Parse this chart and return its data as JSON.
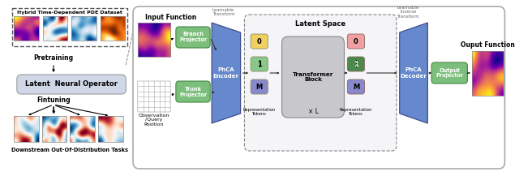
{
  "fig_width": 6.4,
  "fig_height": 2.17,
  "dpi": 100,
  "background": "#ffffff",
  "left_panel": {
    "title": "Hybrid Time-Dependent PDE Dataset",
    "title_fontsize": 5.2,
    "pretraining_label": "Pretraining",
    "finetuning_label": "Fintuning",
    "lno_label": "Latent  Neural Operator",
    "downstream_label": "Downstream Out-Of-Distribution Tasks",
    "lno_box_color": "#d0d8e8",
    "lno_text_color": "#000000",
    "arrow_color": "#000000",
    "dashed_box_color": "#555555"
  },
  "right_panel": {
    "outer_box_color": "#cccccc",
    "input_function_label": "Input Function",
    "output_function_label": "Ouput Function",
    "branch_projector_label": "Branch\nProjector",
    "trunk_projector_label": "Trunk\nProjector",
    "phca_encoder_label": "PhCA\nEncoder",
    "phca_decoder_label": "PhCA\nDecoder",
    "output_projector_label": "Output\nProjector",
    "transformer_block_label": "Transformer\nBlock",
    "latent_space_label": "Latent Space",
    "learnable_transform_label": "Learnable\nTransform",
    "learnable_inverse_label": "Learnable\nInverse\nTransform",
    "rep_tokens_label1": "Representation\nTokens",
    "rep_tokens_label2": "Representation\nTokens",
    "times_l_label": "× L",
    "obs_query_label": "Observation\n/Query\nPosition",
    "green_box_color": "#7cbf7c",
    "blue_trapezoid_color": "#6688cc",
    "gray_transformer_color": "#c8c8cc",
    "latent_dashed_color": "#666666",
    "token_yellow": "#f0d060",
    "token_green_light": "#88c888",
    "token_blue": "#8888cc",
    "token_pink": "#f0a0a0",
    "token_green_dark": "#4a8a4a"
  }
}
